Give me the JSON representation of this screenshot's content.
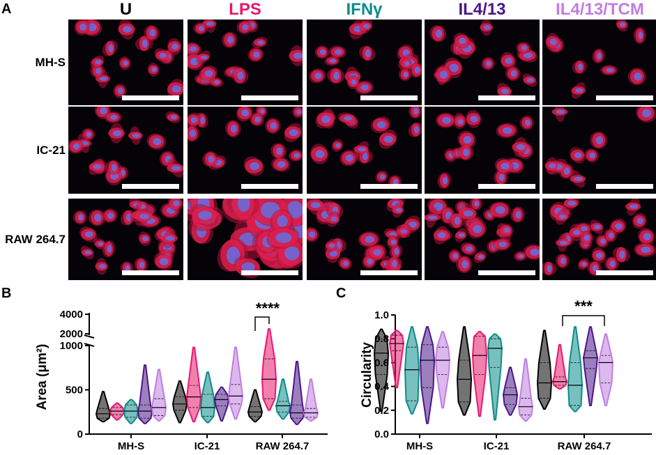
{
  "panelA": {
    "letter": "A",
    "columns": [
      {
        "label": "U",
        "color": "#000000"
      },
      {
        "label": "LPS",
        "color": "#e8186e"
      },
      {
        "label": "IFNγ",
        "color": "#0a8c8a"
      },
      {
        "label": "IL4/13",
        "color": "#4b1589"
      },
      {
        "label": "IL4/13/TCM",
        "color": "#c07ee0"
      }
    ],
    "rows": [
      "MH-S",
      "IC-21",
      "RAW 264.7"
    ]
  },
  "panelB": {
    "letter": "B",
    "ylabel": "Area (μm²)",
    "yticks_lower": [
      "0",
      "500",
      "1000"
    ],
    "yticks_upper": [
      "2000",
      "4000"
    ],
    "groups": [
      "MH-S",
      "IC-21",
      "RAW 264.7"
    ],
    "significance": "****"
  },
  "panelC": {
    "letter": "C",
    "ylabel": "Circularity",
    "yticks": [
      "0.0",
      "0.2",
      "0.4",
      "0.6",
      "0.8",
      "1.0"
    ],
    "groups": [
      "MH-S",
      "IC-21",
      "RAW 264.7"
    ],
    "significance": "***"
  },
  "chart_data": [
    {
      "type": "violin",
      "panel": "B",
      "ylabel": "Area (μm²)",
      "ylim": [
        0,
        1000
      ],
      "upper_segment": [
        2000,
        4000
      ],
      "categories": [
        "MH-S",
        "IC-21",
        "RAW 264.7"
      ],
      "series": [
        {
          "name": "U",
          "color": "#000000",
          "min": [
            140,
            130,
            140
          ],
          "q1": [
            180,
            270,
            200
          ],
          "median": [
            230,
            340,
            250
          ],
          "q3": [
            290,
            420,
            310
          ],
          "max": [
            480,
            600,
            500
          ]
        },
        {
          "name": "LPS",
          "color": "#e8186e",
          "min": [
            160,
            140,
            270
          ],
          "q1": [
            220,
            300,
            400
          ],
          "median": [
            260,
            420,
            620
          ],
          "q3": [
            300,
            550,
            850
          ],
          "max": [
            350,
            980,
            2500
          ]
        },
        {
          "name": "IFNγ",
          "color": "#0a8c8a",
          "min": [
            120,
            130,
            170
          ],
          "q1": [
            190,
            200,
            250
          ],
          "median": [
            260,
            300,
            320
          ],
          "q3": [
            330,
            450,
            370
          ],
          "max": [
            390,
            700,
            620
          ]
        },
        {
          "name": "IL4/13",
          "color": "#4b1589",
          "min": [
            120,
            150,
            110
          ],
          "q1": [
            180,
            320,
            180
          ],
          "median": [
            260,
            390,
            240
          ],
          "q3": [
            330,
            450,
            330
          ],
          "max": [
            780,
            530,
            820
          ]
        },
        {
          "name": "IL4/13/TCM",
          "color": "#c07ee0",
          "min": [
            150,
            170,
            150
          ],
          "q1": [
            210,
            340,
            190
          ],
          "median": [
            300,
            430,
            240
          ],
          "q3": [
            400,
            560,
            290
          ],
          "max": [
            730,
            980,
            620
          ]
        }
      ]
    },
    {
      "type": "violin",
      "panel": "C",
      "ylabel": "Circularity",
      "ylim": [
        0.0,
        1.0
      ],
      "categories": [
        "MH-S",
        "IC-21",
        "RAW 264.7"
      ],
      "series": [
        {
          "name": "U",
          "color": "#000000",
          "min": [
            0.19,
            0.16,
            0.21
          ],
          "q1": [
            0.5,
            0.27,
            0.3
          ],
          "median": [
            0.68,
            0.46,
            0.43
          ],
          "q3": [
            0.8,
            0.62,
            0.6
          ],
          "max": [
            0.88,
            0.9,
            0.87
          ]
        },
        {
          "name": "LPS",
          "color": "#e8186e",
          "min": [
            0.39,
            0.15,
            0.38
          ],
          "q1": [
            0.7,
            0.5,
            0.41
          ],
          "median": [
            0.76,
            0.66,
            0.44
          ],
          "q3": [
            0.83,
            0.82,
            0.48
          ],
          "max": [
            0.87,
            0.86,
            0.75
          ]
        },
        {
          "name": "IFNγ",
          "color": "#0a8c8a",
          "min": [
            0.17,
            0.12,
            0.19
          ],
          "q1": [
            0.28,
            0.56,
            0.24
          ],
          "median": [
            0.54,
            0.72,
            0.41
          ],
          "q3": [
            0.73,
            0.8,
            0.6
          ],
          "max": [
            0.9,
            0.84,
            0.9
          ]
        },
        {
          "name": "IL4/13",
          "color": "#4b1589",
          "min": [
            0.09,
            0.16,
            0.24
          ],
          "q1": [
            0.39,
            0.25,
            0.55
          ],
          "median": [
            0.62,
            0.33,
            0.64
          ],
          "q3": [
            0.75,
            0.39,
            0.7
          ],
          "max": [
            0.9,
            0.56,
            0.9
          ]
        },
        {
          "name": "IL4/13/TCM",
          "color": "#c07ee0",
          "min": [
            0.22,
            0.11,
            0.24
          ],
          "q1": [
            0.5,
            0.16,
            0.43
          ],
          "median": [
            0.62,
            0.23,
            0.6
          ],
          "q3": [
            0.73,
            0.3,
            0.66
          ],
          "max": [
            0.86,
            0.63,
            0.84
          ]
        }
      ]
    }
  ]
}
